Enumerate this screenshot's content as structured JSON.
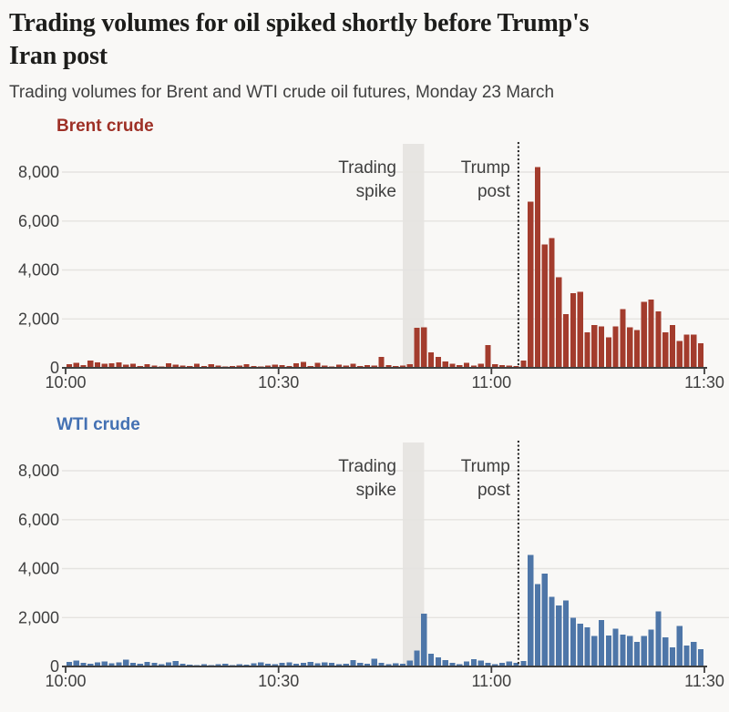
{
  "header": {
    "title_lines": [
      "Trading volumes for oil spiked shortly before Trump's",
      "Iran post"
    ],
    "subtitle": "Trading volumes for Brent and WTI crude oil futures, Monday 23 March"
  },
  "colors": {
    "background": "#f9f8f6",
    "grid": "#e5e3e0",
    "band": "#e7e5e2",
    "axis": "#3f3f3f",
    "dotted_line": "#262626",
    "brent_label": "#9e3026",
    "brent_bar": "#a33c2d",
    "wti_label": "#4471b3",
    "wti_bar": "#4e76a8"
  },
  "chart_data": [
    {
      "type": "bar",
      "title": "Brent crude",
      "color": "#a33c2d",
      "ylim": [
        0,
        9000
      ],
      "y_ticks": [
        0,
        2000,
        4000,
        6000,
        8000
      ],
      "x_ticks": [
        "10:00",
        "10:30",
        "11:00",
        "11:30"
      ],
      "x_tick_minutes": [
        0,
        30,
        60,
        90
      ],
      "grid": true,
      "annotations": {
        "band": {
          "label_lines": [
            "Trading",
            "spike"
          ],
          "x_min": 47.5,
          "x_max": 50.5
        },
        "line": {
          "label_lines": [
            "Trump",
            "post"
          ],
          "x": 63.8
        }
      },
      "values": [
        150,
        200,
        120,
        300,
        230,
        160,
        180,
        220,
        130,
        160,
        70,
        140,
        100,
        60,
        180,
        130,
        90,
        70,
        160,
        80,
        150,
        90,
        60,
        70,
        100,
        140,
        80,
        60,
        90,
        130,
        110,
        80,
        180,
        240,
        70,
        210,
        90,
        60,
        130,
        100,
        160,
        80,
        110,
        90,
        450,
        120,
        80,
        100,
        150,
        1630,
        1660,
        640,
        450,
        260,
        160,
        110,
        210,
        100,
        170,
        930,
        150,
        120,
        100,
        80,
        300,
        6800,
        8200,
        5050,
        5300,
        3700,
        2200,
        3050,
        3100,
        1450,
        1750,
        1700,
        1250,
        1700,
        2400,
        1650,
        1550,
        2700,
        2800,
        2300,
        1450,
        1750,
        1100,
        1350,
        1350,
        1000
      ]
    },
    {
      "type": "bar",
      "title": "WTI crude",
      "color": "#4e76a8",
      "ylim": [
        0,
        9000
      ],
      "y_ticks": [
        0,
        2000,
        4000,
        6000,
        8000
      ],
      "x_ticks": [
        "10:00",
        "10:30",
        "11:00",
        "11:30"
      ],
      "x_tick_minutes": [
        0,
        30,
        60,
        90
      ],
      "grid": true,
      "annotations": {
        "band": {
          "label_lines": [
            "Trading",
            "spike"
          ],
          "x_min": 47.5,
          "x_max": 50.5
        },
        "line": {
          "label_lines": [
            "Trump",
            "post"
          ],
          "x": 63.8
        }
      },
      "values": [
        180,
        250,
        140,
        120,
        160,
        200,
        130,
        170,
        280,
        150,
        110,
        180,
        140,
        90,
        160,
        230,
        120,
        80,
        60,
        100,
        50,
        90,
        120,
        60,
        100,
        70,
        130,
        160,
        110,
        90,
        140,
        170,
        120,
        150,
        180,
        130,
        160,
        140,
        100,
        120,
        260,
        150,
        110,
        320,
        150,
        100,
        130,
        120,
        250,
        650,
        2150,
        530,
        380,
        260,
        150,
        100,
        200,
        300,
        250,
        150,
        100,
        150,
        200,
        150,
        220,
        4550,
        3370,
        3800,
        2850,
        2500,
        2700,
        2000,
        1750,
        1600,
        1250,
        1900,
        1270,
        1550,
        1300,
        1250,
        1000,
        1250,
        1500,
        2250,
        1200,
        780,
        1650,
        850,
        1000,
        700
      ]
    }
  ]
}
